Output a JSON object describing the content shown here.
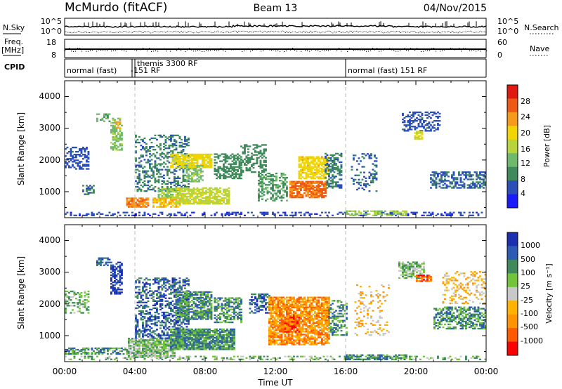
{
  "header": {
    "station": "McMurdo (fitACF)",
    "beam": "Beam 13",
    "date": "04/Nov/2015"
  },
  "side_labels": {
    "nsky": "N.Sky",
    "nsearch": "N.Search",
    "freq": "Freq.",
    "freq_unit": "[MHz]",
    "nave": "Nave",
    "cpid": "CPID"
  },
  "noise_axis": {
    "left_ticks": [
      "10^5",
      "10^0"
    ],
    "right_ticks": [
      "10^5",
      "10^0"
    ]
  },
  "freq_axis": {
    "left_ticks": [
      "18",
      "8"
    ],
    "right_ticks": [
      "60",
      "0"
    ]
  },
  "cpid_segments": [
    {
      "start_hour": 0,
      "label": "normal (fast)"
    },
    {
      "start_hour": 3.85,
      "label": "-151 RF"
    },
    {
      "start_hour": 4.0,
      "label": "themis 3300 RF"
    },
    {
      "start_hour": 16.0,
      "label": "normal (fast) 151 RF"
    }
  ],
  "colors": {
    "power": [
      "#1a1aff",
      "#2b4fb8",
      "#3f8a5a",
      "#6fb96b",
      "#b7d43b",
      "#f1d400",
      "#f59a1a",
      "#ee5a16",
      "#e01a10"
    ],
    "velocity": [
      "#ff0000",
      "#ff5a00",
      "#ff9400",
      "#ffb300",
      "#c8c8c8",
      "#72c43a",
      "#3e8a5a",
      "#2c5bb5",
      "#1c2fb2"
    ]
  },
  "chart_data": [
    {
      "type": "heatmap",
      "name": "power",
      "xlabel": "",
      "ylabel": "Slant Range [km]",
      "xlim_hours": [
        0,
        24
      ],
      "ylim_km": [
        180,
        4500
      ],
      "y_ticks": [
        "1000",
        "2000",
        "3000",
        "4000"
      ],
      "colorbar_label": "Power [dB]",
      "colorbar_ticks": [
        "4",
        "8",
        "12",
        "16",
        "20",
        "24",
        "28"
      ],
      "colorbar_range": [
        0,
        30
      ],
      "regions": [
        {
          "h0": 0.0,
          "h1": 24.0,
          "r0": 230,
          "r1": 330,
          "v": 6,
          "d": 0.35
        },
        {
          "h0": 0.0,
          "h1": 1.4,
          "r0": 1700,
          "r1": 2400,
          "v": 7,
          "d": 0.45
        },
        {
          "h0": 1.0,
          "h1": 1.7,
          "r0": 900,
          "r1": 1200,
          "v": 9,
          "d": 0.5
        },
        {
          "h0": 1.8,
          "h1": 2.6,
          "r0": 3200,
          "r1": 3450,
          "v": 12,
          "d": 0.55
        },
        {
          "h0": 2.6,
          "h1": 3.3,
          "r0": 2300,
          "r1": 3300,
          "v": 14,
          "d": 0.5
        },
        {
          "h0": 2.9,
          "h1": 3.2,
          "r0": 3000,
          "r1": 3200,
          "v": 22,
          "d": 0.7
        },
        {
          "h0": 3.5,
          "h1": 4.7,
          "r0": 500,
          "r1": 800,
          "v": 24,
          "d": 0.85
        },
        {
          "h0": 4.0,
          "h1": 7.0,
          "r0": 1000,
          "r1": 2800,
          "v": 9,
          "d": 0.35
        },
        {
          "h0": 5.0,
          "h1": 6.5,
          "r0": 500,
          "r1": 800,
          "v": 21,
          "d": 0.8
        },
        {
          "h0": 5.3,
          "h1": 6.4,
          "r0": 800,
          "r1": 1100,
          "v": 15,
          "d": 0.6
        },
        {
          "h0": 6.0,
          "h1": 8.3,
          "r0": 1750,
          "r1": 2200,
          "v": 19,
          "d": 0.75
        },
        {
          "h0": 6.3,
          "h1": 9.3,
          "r0": 600,
          "r1": 1100,
          "v": 17,
          "d": 0.75
        },
        {
          "h0": 6.9,
          "h1": 7.8,
          "r0": 1300,
          "r1": 1800,
          "v": 14,
          "d": 0.6
        },
        {
          "h0": 8.5,
          "h1": 10.0,
          "r0": 1400,
          "r1": 2200,
          "v": 10,
          "d": 0.5
        },
        {
          "h0": 10.0,
          "h1": 11.4,
          "r0": 1600,
          "r1": 2500,
          "v": 10,
          "d": 0.45
        },
        {
          "h0": 11.0,
          "h1": 12.6,
          "r0": 700,
          "r1": 1600,
          "v": 11,
          "d": 0.45
        },
        {
          "h0": 12.8,
          "h1": 14.8,
          "r0": 800,
          "r1": 1300,
          "v": 25,
          "d": 0.8
        },
        {
          "h0": 13.3,
          "h1": 14.9,
          "r0": 1400,
          "r1": 2100,
          "v": 20,
          "d": 0.7
        },
        {
          "h0": 14.8,
          "h1": 15.7,
          "r0": 1100,
          "r1": 2200,
          "v": 9,
          "d": 0.55
        },
        {
          "h0": 16.0,
          "h1": 19.5,
          "r0": 230,
          "r1": 400,
          "v": 15,
          "d": 0.6
        },
        {
          "h0": 16.3,
          "h1": 17.8,
          "r0": 1000,
          "r1": 2200,
          "v": 8,
          "d": 0.2
        },
        {
          "h0": 19.2,
          "h1": 21.4,
          "r0": 2900,
          "r1": 3500,
          "v": 7,
          "d": 0.45
        },
        {
          "h0": 19.9,
          "h1": 20.4,
          "r0": 2650,
          "r1": 2900,
          "v": 18,
          "d": 0.7
        },
        {
          "h0": 20.8,
          "h1": 24.0,
          "r0": 1100,
          "r1": 1600,
          "v": 8,
          "d": 0.55
        }
      ]
    },
    {
      "type": "heatmap",
      "name": "velocity",
      "xlabel": "Time UT",
      "ylabel": "Slant Range [km]",
      "xlim_hours": [
        0,
        24
      ],
      "ylim_km": [
        180,
        4500
      ],
      "x_ticks": [
        "00:00",
        "04:00",
        "08:00",
        "12:00",
        "16:00",
        "20:00",
        "00:00"
      ],
      "y_ticks": [
        "1000",
        "2000",
        "3000",
        "4000"
      ],
      "colorbar_label": "Velocity [m s⁻¹]",
      "colorbar_ticks": [
        "1000",
        "500",
        "100",
        "25",
        "-25",
        "-100",
        "-500",
        "-1000"
      ],
      "regions": [
        {
          "h0": 0.0,
          "h1": 24.0,
          "r0": 230,
          "r1": 330,
          "v": 5,
          "d": 0.3
        },
        {
          "h0": 0.0,
          "h1": 3.6,
          "r0": 400,
          "r1": 600,
          "v": 6,
          "d": 0.55
        },
        {
          "h0": 0.0,
          "h1": 1.4,
          "r0": 1700,
          "r1": 2400,
          "v": 5,
          "d": 0.35
        },
        {
          "h0": 1.8,
          "h1": 2.6,
          "r0": 3200,
          "r1": 3450,
          "v": 7,
          "d": 0.55
        },
        {
          "h0": 2.6,
          "h1": 3.3,
          "r0": 2300,
          "r1": 3300,
          "v": 8,
          "d": 0.6
        },
        {
          "h0": 3.6,
          "h1": 6.2,
          "r0": 300,
          "r1": 900,
          "v": 5,
          "d": 0.8
        },
        {
          "h0": 4.0,
          "h1": 7.0,
          "r0": 900,
          "r1": 2800,
          "v": 7,
          "d": 0.45
        },
        {
          "h0": 6.0,
          "h1": 9.6,
          "r0": 550,
          "r1": 1200,
          "v": 6,
          "d": 0.85
        },
        {
          "h0": 6.3,
          "h1": 8.3,
          "r0": 1500,
          "r1": 2400,
          "v": 6,
          "d": 0.7
        },
        {
          "h0": 8.5,
          "h1": 10.0,
          "r0": 1400,
          "r1": 2200,
          "v": 6,
          "d": 0.5
        },
        {
          "h0": 10.5,
          "h1": 11.6,
          "r0": 1700,
          "r1": 2300,
          "v": 7,
          "d": 0.45
        },
        {
          "h0": 11.6,
          "h1": 15.0,
          "r0": 700,
          "r1": 2200,
          "v": 2,
          "d": 0.75
        },
        {
          "h0": 12.5,
          "h1": 13.3,
          "r0": 1100,
          "r1": 1600,
          "v": 1,
          "d": 0.7
        },
        {
          "h0": 15.0,
          "h1": 16.0,
          "r0": 1000,
          "r1": 2100,
          "v": 6,
          "d": 0.4
        },
        {
          "h0": 16.0,
          "h1": 19.5,
          "r0": 230,
          "r1": 380,
          "v": 6,
          "d": 0.65
        },
        {
          "h0": 16.5,
          "h1": 18.5,
          "r0": 1000,
          "r1": 2600,
          "v": 3,
          "d": 0.18
        },
        {
          "h0": 19.0,
          "h1": 20.5,
          "r0": 2800,
          "r1": 3300,
          "v": 5,
          "d": 0.55
        },
        {
          "h0": 20.0,
          "h1": 20.9,
          "r0": 2700,
          "r1": 2900,
          "v": 1,
          "d": 0.7
        },
        {
          "h0": 21.0,
          "h1": 24.0,
          "r0": 1200,
          "r1": 1900,
          "v": 6,
          "d": 0.55
        },
        {
          "h0": 21.5,
          "h1": 24.0,
          "r0": 2000,
          "r1": 3000,
          "v": 3,
          "d": 0.25
        }
      ]
    }
  ]
}
